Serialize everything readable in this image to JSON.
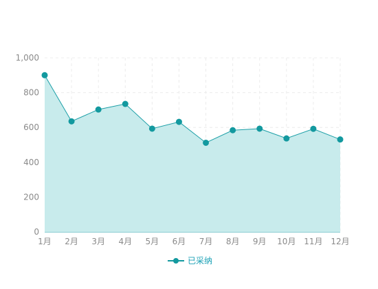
{
  "chart_data": {
    "type": "area",
    "categories": [
      "1月",
      "2月",
      "3月",
      "4月",
      "5月",
      "6月",
      "7月",
      "8月",
      "9月",
      "10月",
      "11月",
      "12月"
    ],
    "series": [
      {
        "name": "已采纳",
        "values": [
          900,
          635,
          703,
          735,
          593,
          632,
          512,
          584,
          593,
          537,
          592,
          531
        ]
      }
    ],
    "ylim": [
      0,
      1000
    ],
    "yticks": [
      "0",
      "200",
      "400",
      "600",
      "800",
      "1,000"
    ],
    "grid": true,
    "legend": "bottom-center",
    "colors": {
      "line": "#1a9ea6",
      "fill": "#c8ebec",
      "point": "#13999f",
      "legend_text": "#1aa0b5"
    }
  }
}
